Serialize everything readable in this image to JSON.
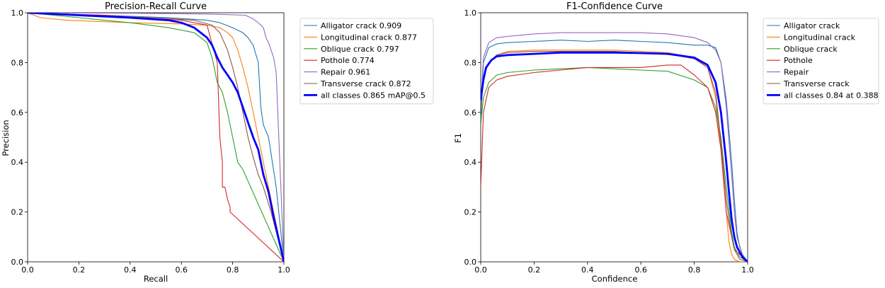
{
  "chart_data": [
    {
      "type": "line",
      "title": "Precision-Recall Curve",
      "xlabel": "Recall",
      "ylabel": "Precision",
      "xlim": [
        0,
        1
      ],
      "ylim": [
        0,
        1
      ],
      "xticks": [
        "0.0",
        "0.2",
        "0.4",
        "0.6",
        "0.8",
        "1.0"
      ],
      "yticks": [
        "0.0",
        "0.2",
        "0.4",
        "0.6",
        "0.8",
        "1.0"
      ],
      "legend_position": "outside-right-top",
      "series": [
        {
          "name": "Alligator crack",
          "legend_label": "Alligator crack 0.909",
          "color": "#1f77b4",
          "width": 1.1,
          "x": [
            0,
            0.05,
            0.3,
            0.55,
            0.7,
            0.75,
            0.8,
            0.84,
            0.86,
            0.88,
            0.9,
            0.91,
            0.92,
            0.94,
            0.97,
            1.0
          ],
          "y": [
            1.0,
            0.995,
            0.99,
            0.98,
            0.97,
            0.96,
            0.94,
            0.92,
            0.9,
            0.87,
            0.8,
            0.62,
            0.55,
            0.5,
            0.3,
            0.0
          ]
        },
        {
          "name": "Longitudinal crack",
          "legend_label": "Longitudinal crack 0.877",
          "color": "#ff7f0e",
          "width": 1.1,
          "x": [
            0,
            0.05,
            0.15,
            0.4,
            0.6,
            0.7,
            0.75,
            0.78,
            0.8,
            0.82,
            0.84,
            0.86,
            0.88,
            0.9,
            0.92,
            0.95,
            1.0
          ],
          "y": [
            1.0,
            0.98,
            0.97,
            0.96,
            0.955,
            0.95,
            0.94,
            0.92,
            0.9,
            0.85,
            0.78,
            0.7,
            0.6,
            0.5,
            0.4,
            0.25,
            0.0
          ]
        },
        {
          "name": "Oblique crack",
          "legend_label": "Oblique crack 0.797",
          "color": "#2ca02c",
          "width": 1.1,
          "x": [
            0,
            0.2,
            0.4,
            0.55,
            0.65,
            0.7,
            0.72,
            0.74,
            0.76,
            0.78,
            0.8,
            0.82,
            0.84,
            1.0
          ],
          "y": [
            1.0,
            0.98,
            0.96,
            0.94,
            0.92,
            0.88,
            0.82,
            0.72,
            0.68,
            0.6,
            0.5,
            0.4,
            0.37,
            0.0
          ]
        },
        {
          "name": "Pothole",
          "legend_label": "Pothole 0.774",
          "color": "#d62728",
          "width": 1.1,
          "x": [
            0,
            0.3,
            0.6,
            0.7,
            0.74,
            0.75,
            0.76,
            0.76,
            0.77,
            0.78,
            0.79,
            0.79,
            1.0
          ],
          "y": [
            1.0,
            0.99,
            0.97,
            0.95,
            0.8,
            0.5,
            0.4,
            0.3,
            0.3,
            0.25,
            0.22,
            0.2,
            0.0
          ]
        },
        {
          "name": "Repair",
          "legend_label": "Repair 0.961",
          "color": "#9467bd",
          "width": 1.1,
          "x": [
            0,
            0.4,
            0.7,
            0.85,
            0.88,
            0.9,
            0.92,
            0.93,
            0.94,
            0.95,
            0.96,
            0.97,
            0.98,
            1.0
          ],
          "y": [
            1.0,
            0.998,
            0.995,
            0.99,
            0.975,
            0.96,
            0.94,
            0.9,
            0.88,
            0.85,
            0.82,
            0.76,
            0.5,
            0.0
          ]
        },
        {
          "name": "Transverse crack",
          "legend_label": "Transverse crack 0.872",
          "color": "#8c564b",
          "width": 1.1,
          "x": [
            0,
            0.2,
            0.5,
            0.65,
            0.72,
            0.75,
            0.78,
            0.8,
            0.82,
            0.84,
            0.86,
            0.88,
            0.9,
            0.92,
            0.95,
            1.0
          ],
          "y": [
            1.0,
            0.99,
            0.98,
            0.97,
            0.95,
            0.92,
            0.85,
            0.78,
            0.7,
            0.6,
            0.5,
            0.42,
            0.35,
            0.3,
            0.2,
            0.0
          ]
        },
        {
          "name": "all classes",
          "legend_label": "all classes 0.865 mAP@0.5",
          "color": "#0000ff",
          "width": 2.8,
          "x": [
            0,
            0.2,
            0.4,
            0.55,
            0.6,
            0.65,
            0.7,
            0.72,
            0.74,
            0.76,
            0.78,
            0.8,
            0.82,
            0.84,
            0.86,
            0.88,
            0.9,
            0.92,
            0.94,
            0.96,
            1.0
          ],
          "y": [
            1.0,
            0.99,
            0.98,
            0.97,
            0.96,
            0.94,
            0.9,
            0.87,
            0.82,
            0.78,
            0.75,
            0.72,
            0.68,
            0.62,
            0.56,
            0.5,
            0.45,
            0.35,
            0.28,
            0.18,
            0.0
          ]
        }
      ]
    },
    {
      "type": "line",
      "title": "F1-Confidence Curve",
      "xlabel": "Confidence",
      "ylabel": "F1",
      "xlim": [
        0,
        1
      ],
      "ylim": [
        0,
        1
      ],
      "xticks": [
        "0.0",
        "0.2",
        "0.4",
        "0.6",
        "0.8",
        "1.0"
      ],
      "yticks": [
        "0.0",
        "0.2",
        "0.4",
        "0.6",
        "0.8",
        "1.0"
      ],
      "legend_position": "outside-right-top",
      "series": [
        {
          "name": "Alligator crack",
          "legend_label": "Alligator crack",
          "color": "#1f77b4",
          "width": 1.1,
          "x": [
            0,
            0.01,
            0.03,
            0.06,
            0.1,
            0.2,
            0.3,
            0.4,
            0.5,
            0.6,
            0.7,
            0.8,
            0.85,
            0.88,
            0.9,
            0.92,
            0.94,
            0.95,
            0.96,
            0.97,
            0.98,
            1.0
          ],
          "y": [
            0.55,
            0.8,
            0.86,
            0.875,
            0.88,
            0.885,
            0.89,
            0.885,
            0.89,
            0.885,
            0.88,
            0.87,
            0.87,
            0.86,
            0.8,
            0.65,
            0.4,
            0.25,
            0.12,
            0.06,
            0.03,
            0.0
          ]
        },
        {
          "name": "Longitudinal crack",
          "legend_label": "Longitudinal crack",
          "color": "#ff7f0e",
          "width": 1.1,
          "x": [
            0,
            0.01,
            0.03,
            0.06,
            0.1,
            0.2,
            0.3,
            0.4,
            0.5,
            0.6,
            0.7,
            0.8,
            0.85,
            0.88,
            0.9,
            0.92,
            0.93,
            0.94,
            0.95,
            0.97,
            1.0
          ],
          "y": [
            0.62,
            0.74,
            0.8,
            0.83,
            0.845,
            0.85,
            0.85,
            0.85,
            0.85,
            0.845,
            0.84,
            0.82,
            0.78,
            0.66,
            0.45,
            0.2,
            0.08,
            0.03,
            0.01,
            0.0,
            0.0
          ]
        },
        {
          "name": "Oblique crack",
          "legend_label": "Oblique crack",
          "color": "#2ca02c",
          "width": 1.1,
          "x": [
            0,
            0.01,
            0.03,
            0.06,
            0.1,
            0.2,
            0.3,
            0.4,
            0.5,
            0.6,
            0.7,
            0.8,
            0.85,
            0.88,
            0.9,
            0.92,
            0.94,
            0.95,
            0.97,
            1.0
          ],
          "y": [
            0.55,
            0.66,
            0.72,
            0.75,
            0.76,
            0.77,
            0.775,
            0.78,
            0.775,
            0.77,
            0.765,
            0.73,
            0.7,
            0.62,
            0.5,
            0.3,
            0.12,
            0.06,
            0.02,
            0.0
          ]
        },
        {
          "name": "Pothole",
          "legend_label": "Pothole",
          "color": "#d62728",
          "width": 1.1,
          "x": [
            0,
            0.01,
            0.03,
            0.06,
            0.1,
            0.2,
            0.3,
            0.4,
            0.5,
            0.6,
            0.7,
            0.75,
            0.8,
            0.85,
            0.88,
            0.9,
            0.92,
            0.95,
            1.0
          ],
          "y": [
            0.3,
            0.6,
            0.7,
            0.73,
            0.745,
            0.76,
            0.77,
            0.78,
            0.78,
            0.78,
            0.79,
            0.79,
            0.75,
            0.7,
            0.6,
            0.45,
            0.2,
            0.05,
            0.0
          ]
        },
        {
          "name": "Repair",
          "legend_label": "Repair",
          "color": "#9467bd",
          "width": 1.1,
          "x": [
            0,
            0.01,
            0.03,
            0.06,
            0.1,
            0.2,
            0.3,
            0.4,
            0.5,
            0.6,
            0.7,
            0.8,
            0.85,
            0.88,
            0.9,
            0.92,
            0.94,
            0.95,
            0.96,
            0.98,
            1.0
          ],
          "y": [
            0.62,
            0.82,
            0.88,
            0.9,
            0.905,
            0.915,
            0.92,
            0.92,
            0.92,
            0.92,
            0.915,
            0.9,
            0.88,
            0.85,
            0.8,
            0.62,
            0.35,
            0.2,
            0.1,
            0.03,
            0.0
          ]
        },
        {
          "name": "Transverse crack",
          "legend_label": "Transverse crack",
          "color": "#8c564b",
          "width": 1.1,
          "x": [
            0,
            0.01,
            0.03,
            0.06,
            0.1,
            0.2,
            0.3,
            0.4,
            0.5,
            0.6,
            0.7,
            0.8,
            0.85,
            0.88,
            0.9,
            0.92,
            0.94,
            0.95,
            0.97,
            1.0
          ],
          "y": [
            0.62,
            0.74,
            0.8,
            0.83,
            0.84,
            0.845,
            0.845,
            0.845,
            0.845,
            0.84,
            0.835,
            0.815,
            0.78,
            0.68,
            0.48,
            0.25,
            0.1,
            0.05,
            0.01,
            0.0
          ]
        },
        {
          "name": "all classes",
          "legend_label": "all classes 0.84 at 0.388",
          "color": "#0000ff",
          "width": 2.8,
          "x": [
            0,
            0.01,
            0.02,
            0.04,
            0.06,
            0.1,
            0.2,
            0.3,
            0.388,
            0.5,
            0.6,
            0.7,
            0.8,
            0.85,
            0.88,
            0.9,
            0.92,
            0.93,
            0.94,
            0.95,
            0.96,
            0.98,
            1.0
          ],
          "y": [
            0.65,
            0.73,
            0.78,
            0.81,
            0.825,
            0.83,
            0.835,
            0.84,
            0.84,
            0.84,
            0.838,
            0.835,
            0.82,
            0.79,
            0.72,
            0.6,
            0.4,
            0.28,
            0.17,
            0.1,
            0.06,
            0.02,
            0.0
          ]
        }
      ]
    }
  ]
}
